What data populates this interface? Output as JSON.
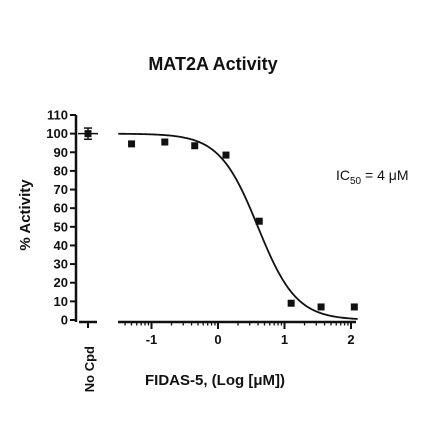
{
  "chart_data": {
    "type": "scatter",
    "title": "MAT2A Activity",
    "ylabel": "% Activity",
    "xlabel": "FIDAS-5, (Log [μM])",
    "control_label": "No Cpd",
    "control": {
      "y": 100,
      "err": 3
    },
    "x_ticks": [
      -1,
      0,
      1,
      2
    ],
    "y_ticks": [
      0,
      10,
      20,
      30,
      40,
      50,
      60,
      70,
      80,
      90,
      100,
      110
    ],
    "xlim": [
      -1.5,
      2.1
    ],
    "ylim": [
      0,
      110
    ],
    "points": [
      {
        "x": -1.3,
        "y": 94.5
      },
      {
        "x": -0.8,
        "y": 95.5
      },
      {
        "x": -0.35,
        "y": 93.5
      },
      {
        "x": 0.12,
        "y": 88.5
      },
      {
        "x": 0.62,
        "y": 53
      },
      {
        "x": 1.1,
        "y": 9
      },
      {
        "x": 1.55,
        "y": 7
      },
      {
        "x": 2.05,
        "y": 7
      }
    ],
    "fit": {
      "top": 100,
      "bottom": 0,
      "log_ic50": 0.6,
      "hill": -1.5
    },
    "annotation": {
      "text_main": "IC",
      "text_sub": "50",
      "text_tail": " = 4 μM"
    },
    "grid": false,
    "legend": "none"
  }
}
